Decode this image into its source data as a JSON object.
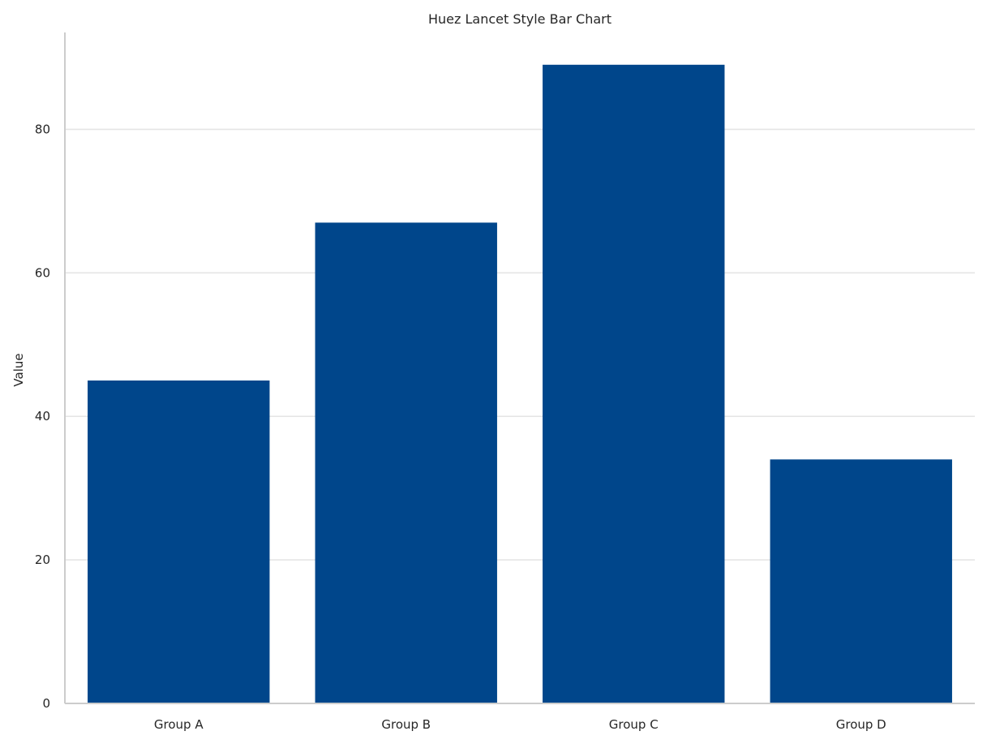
{
  "chart_data": {
    "type": "bar",
    "title": "Huez Lancet Style Bar Chart",
    "xlabel": "",
    "ylabel": "Value",
    "categories": [
      "Group A",
      "Group B",
      "Group C",
      "Group D"
    ],
    "values": [
      45,
      67,
      89,
      34
    ],
    "ylim": [
      0,
      93.5
    ],
    "yticks": [
      0,
      20,
      40,
      60,
      80
    ],
    "grid": "horizontal",
    "bar_color": "#00468b"
  }
}
